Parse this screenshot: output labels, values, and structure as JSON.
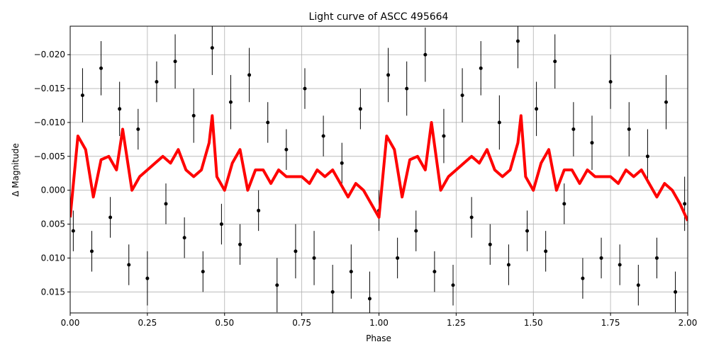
{
  "chart_data": {
    "type": "scatter",
    "title": "Light curve of ASCC 495664",
    "xlabel": "Phase",
    "ylabel": "Δ Magnitude",
    "xlim": [
      0,
      2
    ],
    "ylim": [
      -0.0242,
      0.0181
    ],
    "y_inverted": true,
    "grid": true,
    "xticks": [
      {
        "value": 0,
        "label": "0.00"
      },
      0.25,
      {
        "value": 0.5,
        "label": "0.50"
      },
      0.75,
      {
        "value": 1,
        "label": "1.00"
      },
      1.25,
      {
        "value": 1.5,
        "label": "1.50"
      },
      1.75,
      {
        "value": 2,
        "label": "2.00"
      }
    ],
    "yticks": [
      {
        "value": -0.02,
        "label": "−0.020"
      },
      {
        "value": -0.015,
        "label": "−0.015"
      },
      {
        "value": -0.01,
        "label": "−0.010"
      },
      {
        "value": -0.005,
        "label": "−0.005"
      },
      {
        "value": 0,
        "label": "0.000"
      },
      {
        "value": 0.005,
        "label": "0.005"
      },
      {
        "value": 0.01,
        "label": "0.010"
      },
      {
        "value": 0.015,
        "label": "0.015"
      }
    ],
    "points": {
      "color": "#000000",
      "x": [
        0.01,
        0.04,
        0.07,
        0.1,
        0.13,
        0.16,
        0.19,
        0.22,
        0.25,
        0.28,
        0.31,
        0.34,
        0.37,
        0.4,
        0.43,
        0.46,
        0.49,
        0.52,
        0.55,
        0.58,
        0.61,
        0.64,
        0.67,
        0.7,
        0.73,
        0.76,
        0.79,
        0.82,
        0.85,
        0.88,
        0.91,
        0.94,
        0.97,
        1.0,
        1.03,
        1.06,
        1.09,
        1.12,
        1.15,
        1.18,
        1.21,
        1.24,
        1.27,
        1.3,
        1.33,
        1.36,
        1.39,
        1.42,
        1.45,
        1.48,
        1.51,
        1.54,
        1.57,
        1.6,
        1.63,
        1.66,
        1.69,
        1.72,
        1.75,
        1.78,
        1.81,
        1.84,
        1.87,
        1.9,
        1.93,
        1.96,
        1.99
      ],
      "values": [
        0.006,
        -0.014,
        0.009,
        -0.018,
        0.004,
        -0.012,
        0.011,
        -0.009,
        0.013,
        -0.016,
        0.002,
        -0.019,
        0.007,
        -0.011,
        0.012,
        -0.021,
        0.005,
        -0.013,
        0.008,
        -0.017,
        0.003,
        -0.01,
        0.014,
        -0.006,
        0.009,
        -0.015,
        0.01,
        -0.008,
        0.015,
        -0.004,
        0.012,
        -0.012,
        0.016,
        0.003,
        -0.017,
        0.01,
        -0.015,
        0.006,
        -0.02,
        0.012,
        -0.008,
        0.014,
        -0.014,
        0.004,
        -0.018,
        0.008,
        -0.01,
        0.011,
        -0.022,
        0.006,
        -0.012,
        0.009,
        -0.019,
        0.002,
        -0.009,
        0.013,
        -0.007,
        0.01,
        -0.016,
        0.011,
        -0.009,
        0.014,
        -0.005,
        0.01,
        -0.013,
        0.015,
        0.002
      ],
      "errors": [
        0.003,
        0.004,
        0.003,
        0.004,
        0.003,
        0.004,
        0.003,
        0.003,
        0.004,
        0.003,
        0.003,
        0.004,
        0.003,
        0.004,
        0.003,
        0.004,
        0.003,
        0.004,
        0.003,
        0.004,
        0.003,
        0.003,
        0.004,
        0.003,
        0.004,
        0.003,
        0.004,
        0.003,
        0.004,
        0.003,
        0.004,
        0.003,
        0.004,
        0.003,
        0.004,
        0.003,
        0.004,
        0.003,
        0.004,
        0.003,
        0.004,
        0.003,
        0.004,
        0.003,
        0.004,
        0.003,
        0.004,
        0.003,
        0.004,
        0.003,
        0.004,
        0.003,
        0.004,
        0.003,
        0.004,
        0.003,
        0.004,
        0.003,
        0.004,
        0.003,
        0.004,
        0.003,
        0.004,
        0.003,
        0.004,
        0.003,
        0.004
      ]
    },
    "series": [
      {
        "name": "model",
        "color": "#ff0000",
        "x": [
          0,
          0.025,
          0.05,
          0.075,
          0.1,
          0.125,
          0.15,
          0.17,
          0.2,
          0.225,
          0.25,
          0.275,
          0.3,
          0.325,
          0.35,
          0.375,
          0.4,
          0.425,
          0.45,
          0.46,
          0.475,
          0.5,
          0.525,
          0.55,
          0.575,
          0.6,
          0.625,
          0.65,
          0.675,
          0.7,
          0.725,
          0.75,
          0.775,
          0.8,
          0.825,
          0.85,
          0.875,
          0.9,
          0.925,
          0.95,
          0.975,
          1.0,
          1.025,
          1.05,
          1.075,
          1.1,
          1.125,
          1.15,
          1.17,
          1.2,
          1.225,
          1.25,
          1.275,
          1.3,
          1.325,
          1.35,
          1.375,
          1.4,
          1.425,
          1.45,
          1.46,
          1.475,
          1.5,
          1.525,
          1.55,
          1.575,
          1.6,
          1.625,
          1.65,
          1.675,
          1.7,
          1.725,
          1.75,
          1.775,
          1.8,
          1.825,
          1.85,
          1.875,
          1.9,
          1.925,
          1.95,
          1.975,
          2.0
        ],
        "values": [
          0.004,
          -0.008,
          -0.006,
          0.001,
          -0.0045,
          -0.005,
          -0.003,
          -0.009,
          0.0,
          -0.002,
          -0.003,
          -0.004,
          -0.005,
          -0.004,
          -0.006,
          -0.003,
          -0.002,
          -0.003,
          -0.007,
          -0.011,
          -0.002,
          0.0,
          -0.004,
          -0.006,
          0.0,
          -0.003,
          -0.003,
          -0.001,
          -0.003,
          -0.002,
          -0.002,
          -0.002,
          -0.001,
          -0.003,
          -0.002,
          -0.003,
          -0.001,
          0.001,
          -0.001,
          0.0,
          0.002,
          0.004,
          -0.008,
          -0.006,
          0.001,
          -0.0045,
          -0.005,
          -0.003,
          -0.01,
          0.0,
          -0.002,
          -0.003,
          -0.004,
          -0.005,
          -0.004,
          -0.006,
          -0.003,
          -0.002,
          -0.003,
          -0.007,
          -0.011,
          -0.002,
          0.0,
          -0.004,
          -0.006,
          0.0,
          -0.003,
          -0.003,
          -0.001,
          -0.003,
          -0.002,
          -0.002,
          -0.002,
          -0.001,
          -0.003,
          -0.002,
          -0.003,
          -0.001,
          0.001,
          -0.001,
          0.0,
          0.002,
          0.0045
        ]
      }
    ]
  }
}
